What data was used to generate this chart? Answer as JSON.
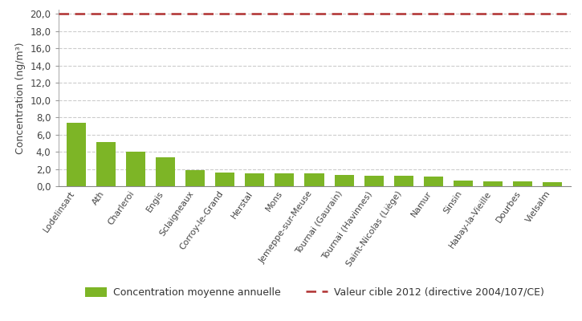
{
  "categories": [
    "Lodelinsart",
    "Ath",
    "Charleroi",
    "Engis",
    "Sclaigneaux",
    "Corroy-le-Grand",
    "Herstal",
    "Mons",
    "Jemeppe-sur-Meuse",
    "Tournai (Gaurain)",
    "Tournai (Havinnes)",
    "Saint-Nicolas (Liège)",
    "Namur",
    "Sinsin",
    "Habay-la-Vieille",
    "Dourbes",
    "Vielsalm"
  ],
  "values": [
    7.4,
    5.15,
    4.05,
    3.35,
    1.85,
    1.6,
    1.5,
    1.45,
    1.45,
    1.35,
    1.25,
    1.25,
    1.15,
    0.65,
    0.55,
    0.55,
    0.45
  ],
  "bar_color": "#7db526",
  "reference_line": 20.0,
  "reference_color": "#b03030",
  "ylabel": "Concentration (ng/m³)",
  "ylim": [
    0,
    20.5
  ],
  "yticks": [
    0.0,
    2.0,
    4.0,
    6.0,
    8.0,
    10.0,
    12.0,
    14.0,
    16.0,
    18.0,
    20.0
  ],
  "ytick_labels": [
    "0,0",
    "2,0",
    "4,0",
    "6,0",
    "8,0",
    "10,0",
    "12,0",
    "14,0",
    "16,0",
    "18,0",
    "20,0"
  ],
  "legend_bar_label": "Concentration moyenne annuelle",
  "legend_line_label": "Valeur cible 2012 (directive 2004/107/CE)",
  "background_color": "#ffffff",
  "plot_bg_color": "#e8e8e8",
  "grid_color": "#cccccc"
}
